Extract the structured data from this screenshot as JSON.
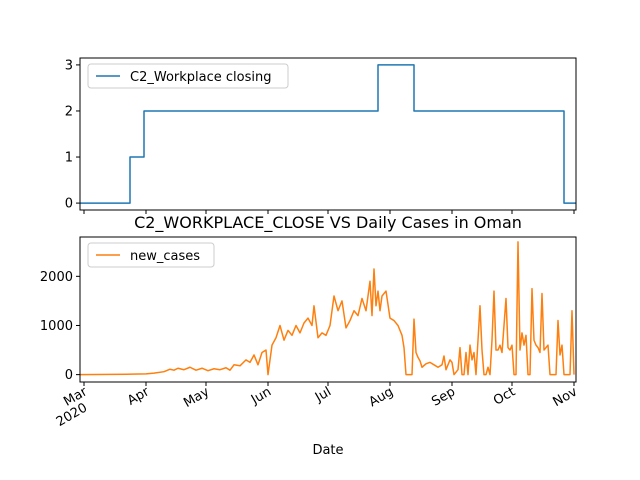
{
  "chart_data": [
    {
      "type": "line",
      "title": "",
      "xlabel": "",
      "ylabel": "",
      "xlim": [
        "2020-02-28",
        "2020-11-02"
      ],
      "ylim": [
        -0.15,
        3.15
      ],
      "yticks": [
        0,
        1,
        2,
        3
      ],
      "grid": false,
      "legend": "top-left",
      "series": [
        {
          "name": "C2_Workplace closing",
          "color": "#1f77b4",
          "step": true,
          "points": [
            [
              "2020-02-28",
              0
            ],
            [
              "2020-03-24",
              0
            ],
            [
              "2020-03-24",
              1
            ],
            [
              "2020-03-31",
              1
            ],
            [
              "2020-03-31",
              2
            ],
            [
              "2020-07-26",
              2
            ],
            [
              "2020-07-26",
              3
            ],
            [
              "2020-08-13",
              3
            ],
            [
              "2020-08-13",
              2
            ],
            [
              "2020-10-27",
              2
            ],
            [
              "2020-10-27",
              0
            ],
            [
              "2020-11-02",
              0
            ]
          ]
        }
      ]
    },
    {
      "type": "line",
      "title": "C2_WORKPLACE_CLOSE VS Daily Cases in Oman",
      "xlabel": "Date",
      "ylabel": "",
      "xlim": [
        "2020-02-28",
        "2020-11-02"
      ],
      "ylim": [
        -150,
        2800
      ],
      "yticks": [
        0,
        1000,
        2000
      ],
      "xticks": [
        {
          "date": "2020-03-01",
          "label": "Mar",
          "sublabel": "2020"
        },
        {
          "date": "2020-04-01",
          "label": "Apr"
        },
        {
          "date": "2020-05-01",
          "label": "May"
        },
        {
          "date": "2020-06-01",
          "label": "Jun"
        },
        {
          "date": "2020-07-01",
          "label": "Jul"
        },
        {
          "date": "2020-08-01",
          "label": "Aug"
        },
        {
          "date": "2020-09-01",
          "label": "Sep"
        },
        {
          "date": "2020-10-01",
          "label": "Oct"
        },
        {
          "date": "2020-11-01",
          "label": "Nov"
        }
      ],
      "grid": false,
      "legend": "top-left",
      "series": [
        {
          "name": "new_cases",
          "color": "#ff7f0e",
          "points": [
            [
              "2020-02-28",
              0
            ],
            [
              "2020-03-15",
              5
            ],
            [
              "2020-03-25",
              10
            ],
            [
              "2020-04-01",
              15
            ],
            [
              "2020-04-05",
              30
            ],
            [
              "2020-04-10",
              60
            ],
            [
              "2020-04-13",
              110
            ],
            [
              "2020-04-15",
              90
            ],
            [
              "2020-04-17",
              130
            ],
            [
              "2020-04-20",
              100
            ],
            [
              "2020-04-23",
              150
            ],
            [
              "2020-04-26",
              90
            ],
            [
              "2020-04-29",
              130
            ],
            [
              "2020-05-02",
              80
            ],
            [
              "2020-05-05",
              120
            ],
            [
              "2020-05-08",
              100
            ],
            [
              "2020-05-11",
              140
            ],
            [
              "2020-05-13",
              90
            ],
            [
              "2020-05-15",
              200
            ],
            [
              "2020-05-18",
              180
            ],
            [
              "2020-05-21",
              300
            ],
            [
              "2020-05-23",
              250
            ],
            [
              "2020-05-25",
              400
            ],
            [
              "2020-05-27",
              200
            ],
            [
              "2020-05-29",
              450
            ],
            [
              "2020-05-31",
              500
            ],
            [
              "2020-06-01",
              0
            ],
            [
              "2020-06-03",
              600
            ],
            [
              "2020-06-05",
              750
            ],
            [
              "2020-06-07",
              1000
            ],
            [
              "2020-06-09",
              700
            ],
            [
              "2020-06-11",
              900
            ],
            [
              "2020-06-13",
              800
            ],
            [
              "2020-06-15",
              1000
            ],
            [
              "2020-06-17",
              850
            ],
            [
              "2020-06-19",
              1050
            ],
            [
              "2020-06-21",
              1150
            ],
            [
              "2020-06-23",
              1000
            ],
            [
              "2020-06-24",
              1400
            ],
            [
              "2020-06-26",
              750
            ],
            [
              "2020-06-28",
              850
            ],
            [
              "2020-06-30",
              800
            ],
            [
              "2020-07-02",
              1000
            ],
            [
              "2020-07-04",
              1600
            ],
            [
              "2020-07-06",
              1300
            ],
            [
              "2020-07-08",
              1500
            ],
            [
              "2020-07-10",
              950
            ],
            [
              "2020-07-12",
              1100
            ],
            [
              "2020-07-14",
              1300
            ],
            [
              "2020-07-16",
              1200
            ],
            [
              "2020-07-18",
              1550
            ],
            [
              "2020-07-20",
              1300
            ],
            [
              "2020-07-22",
              1900
            ],
            [
              "2020-07-23",
              1200
            ],
            [
              "2020-07-24",
              2150
            ],
            [
              "2020-07-25",
              1400
            ],
            [
              "2020-07-26",
              1700
            ],
            [
              "2020-07-27",
              1300
            ],
            [
              "2020-07-28",
              1600
            ],
            [
              "2020-07-30",
              1700
            ],
            [
              "2020-08-01",
              1150
            ],
            [
              "2020-08-03",
              1100
            ],
            [
              "2020-08-05",
              1000
            ],
            [
              "2020-08-07",
              800
            ],
            [
              "2020-08-08",
              550
            ],
            [
              "2020-08-09",
              0
            ],
            [
              "2020-08-12",
              0
            ],
            [
              "2020-08-13",
              1130
            ],
            [
              "2020-08-14",
              450
            ],
            [
              "2020-08-15",
              350
            ],
            [
              "2020-08-16",
              280
            ],
            [
              "2020-08-17",
              150
            ],
            [
              "2020-08-19",
              220
            ],
            [
              "2020-08-21",
              250
            ],
            [
              "2020-08-23",
              200
            ],
            [
              "2020-08-25",
              150
            ],
            [
              "2020-08-27",
              200
            ],
            [
              "2020-08-28",
              380
            ],
            [
              "2020-08-29",
              100
            ],
            [
              "2020-08-31",
              300
            ],
            [
              "2020-09-01",
              250
            ],
            [
              "2020-09-02",
              0
            ],
            [
              "2020-09-04",
              100
            ],
            [
              "2020-09-05",
              550
            ],
            [
              "2020-09-06",
              0
            ],
            [
              "2020-09-07",
              0
            ],
            [
              "2020-09-08",
              450
            ],
            [
              "2020-09-09",
              0
            ],
            [
              "2020-09-10",
              600
            ],
            [
              "2020-09-11",
              300
            ],
            [
              "2020-09-12",
              450
            ],
            [
              "2020-09-13",
              0
            ],
            [
              "2020-09-15",
              1400
            ],
            [
              "2020-09-16",
              500
            ],
            [
              "2020-09-17",
              0
            ],
            [
              "2020-09-18",
              0
            ],
            [
              "2020-09-19",
              150
            ],
            [
              "2020-09-20",
              0
            ],
            [
              "2020-09-21",
              700
            ],
            [
              "2020-09-22",
              1700
            ],
            [
              "2020-09-23",
              500
            ],
            [
              "2020-09-24",
              500
            ],
            [
              "2020-09-25",
              600
            ],
            [
              "2020-09-26",
              450
            ],
            [
              "2020-09-28",
              1550
            ],
            [
              "2020-09-29",
              550
            ],
            [
              "2020-09-30",
              500
            ],
            [
              "2020-10-01",
              600
            ],
            [
              "2020-10-02",
              0
            ],
            [
              "2020-10-03",
              0
            ],
            [
              "2020-10-04",
              2700
            ],
            [
              "2020-10-05",
              500
            ],
            [
              "2020-10-06",
              850
            ],
            [
              "2020-10-07",
              600
            ],
            [
              "2020-10-08",
              800
            ],
            [
              "2020-10-09",
              0
            ],
            [
              "2020-10-10",
              0
            ],
            [
              "2020-10-11",
              1750
            ],
            [
              "2020-10-12",
              700
            ],
            [
              "2020-10-13",
              600
            ],
            [
              "2020-10-14",
              550
            ],
            [
              "2020-10-15",
              450
            ],
            [
              "2020-10-16",
              1650
            ],
            [
              "2020-10-17",
              500
            ],
            [
              "2020-10-19",
              600
            ],
            [
              "2020-10-20",
              0
            ],
            [
              "2020-10-21",
              0
            ],
            [
              "2020-10-23",
              0
            ],
            [
              "2020-10-24",
              1100
            ],
            [
              "2020-10-25",
              400
            ],
            [
              "2020-10-26",
              600
            ],
            [
              "2020-10-27",
              0
            ],
            [
              "2020-10-28",
              0
            ],
            [
              "2020-10-29",
              0
            ],
            [
              "2020-10-30",
              0
            ],
            [
              "2020-10-31",
              1300
            ],
            [
              "2020-11-01",
              0
            ]
          ]
        }
      ]
    }
  ]
}
